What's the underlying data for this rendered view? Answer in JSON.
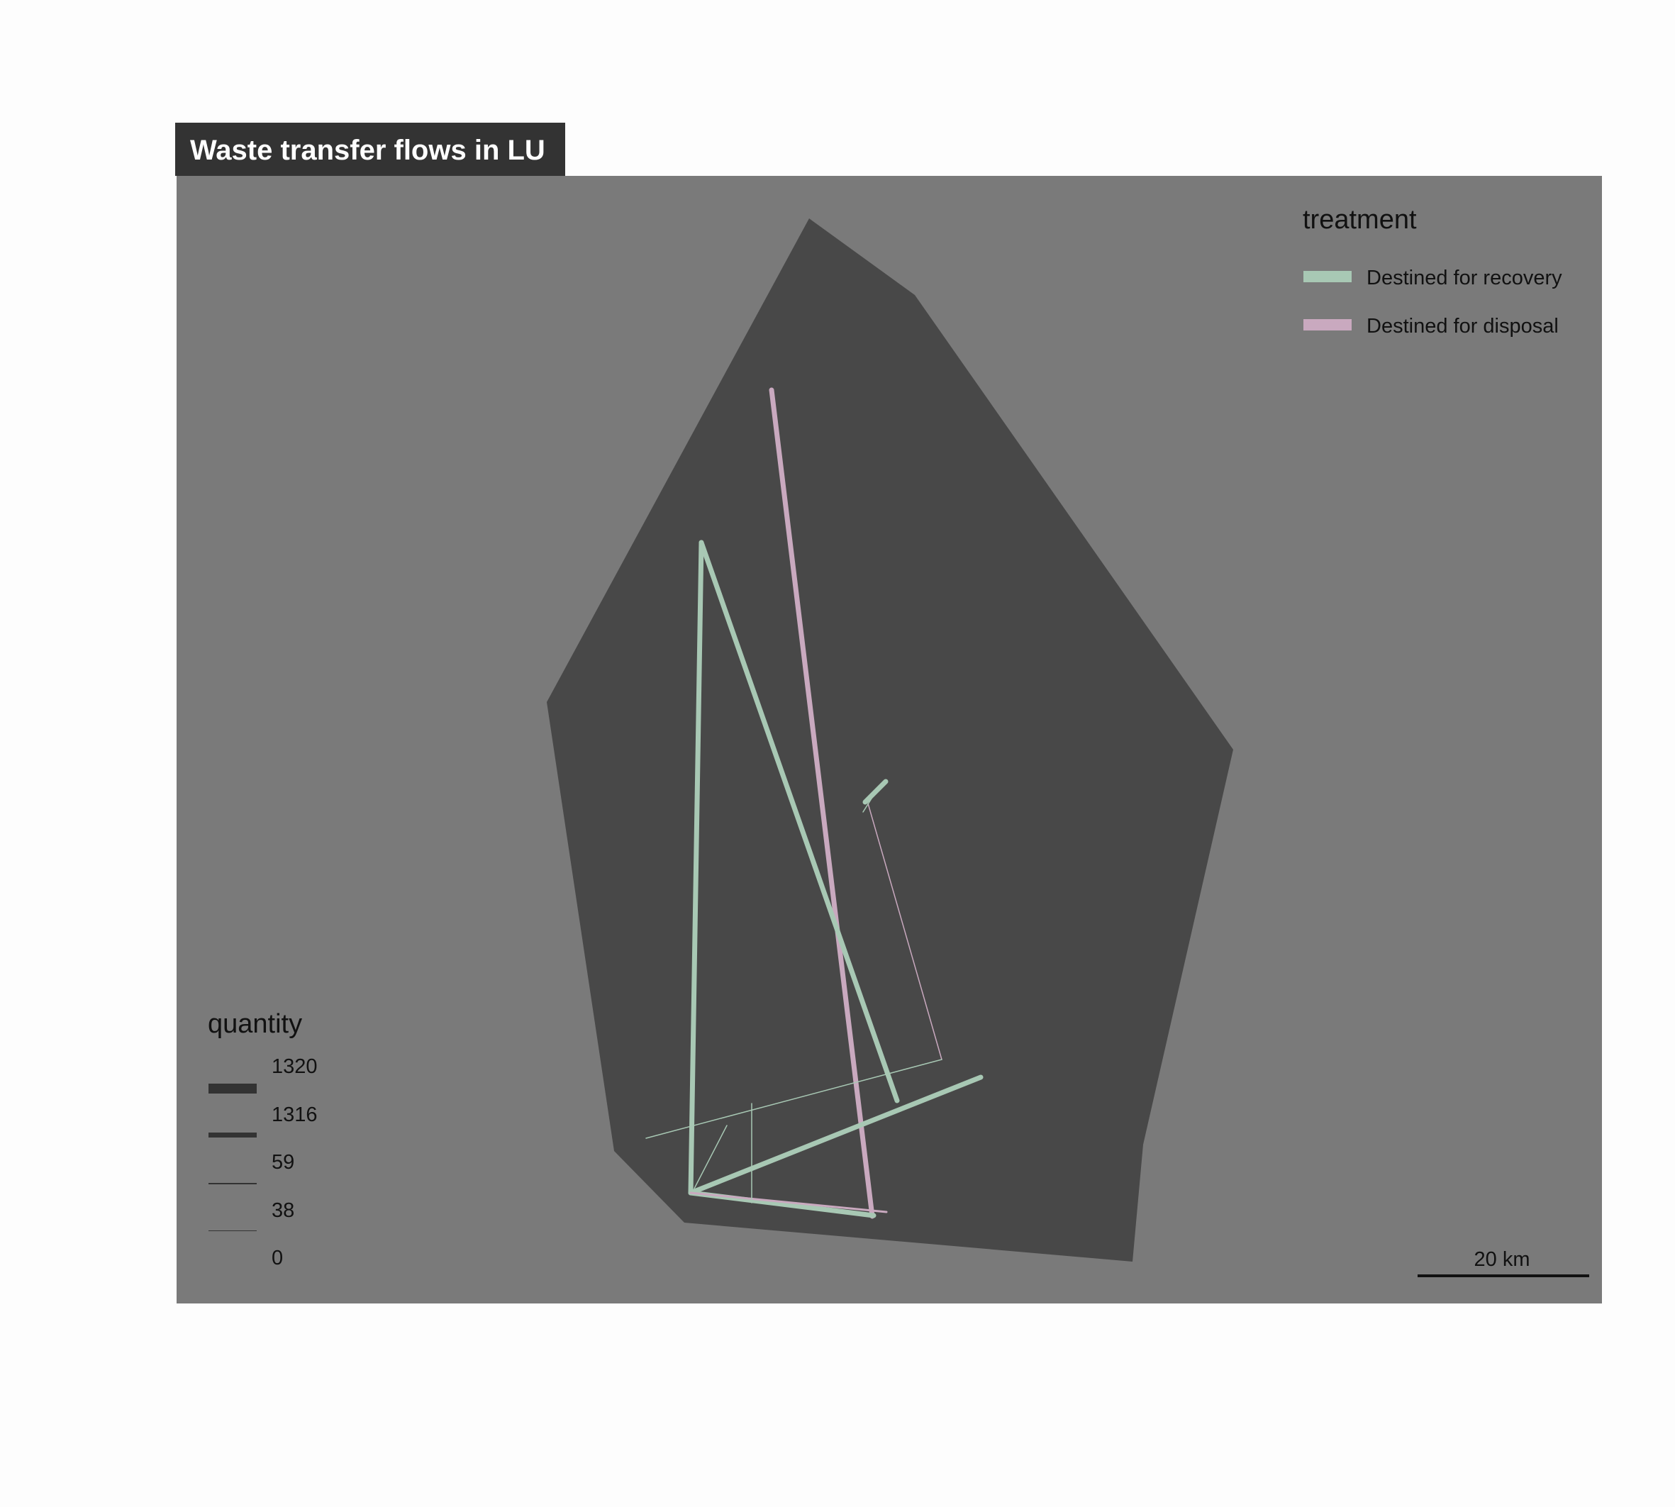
{
  "title": "Waste transfer flows in LU",
  "colors": {
    "page_background": "#fdfdfd",
    "map_frame": "#7a7a7a",
    "country_fill": "#484848",
    "title_box": "#333333",
    "recovery": "#a8c8b4",
    "disposal": "#c9a9bf",
    "quantity_legend_line": "#333333"
  },
  "treatment_legend": {
    "title": "treatment",
    "items": [
      {
        "label": "Destined for recovery",
        "color_key": "recovery"
      },
      {
        "label": "Destined for disposal",
        "color_key": "disposal"
      }
    ]
  },
  "quantity_legend": {
    "title": "quantity",
    "labels": [
      "1320",
      "1316",
      "59",
      "38",
      "0"
    ]
  },
  "scale_bar": {
    "label": "20 km"
  },
  "flows": [
    {
      "id": "flow-disposal-north-south",
      "treatment": "disposal",
      "quantity": 1320
    },
    {
      "id": "flow-recovery-west-trunk",
      "treatment": "recovery",
      "quantity": 1316
    },
    {
      "id": "flow-recovery-diagonal",
      "treatment": "recovery",
      "quantity": 1316
    },
    {
      "id": "flow-recovery-southeast",
      "treatment": "recovery",
      "quantity": 1316
    },
    {
      "id": "flow-recovery-south-base",
      "treatment": "recovery",
      "quantity": 1316
    },
    {
      "id": "flow-recovery-central-short",
      "treatment": "recovery",
      "quantity": 1316
    },
    {
      "id": "flow-disposal-south-base",
      "treatment": "disposal",
      "quantity": 59
    },
    {
      "id": "flow-disposal-central-thin",
      "treatment": "disposal",
      "quantity": 38
    },
    {
      "id": "flow-recovery-southwest-thin",
      "treatment": "recovery",
      "quantity": 38
    },
    {
      "id": "flow-recovery-vertical-thin",
      "treatment": "recovery",
      "quantity": 38
    },
    {
      "id": "flow-recovery-short-thin",
      "treatment": "recovery",
      "quantity": 38
    },
    {
      "id": "flow-recovery-central-tick",
      "treatment": "recovery",
      "quantity": 38
    }
  ]
}
